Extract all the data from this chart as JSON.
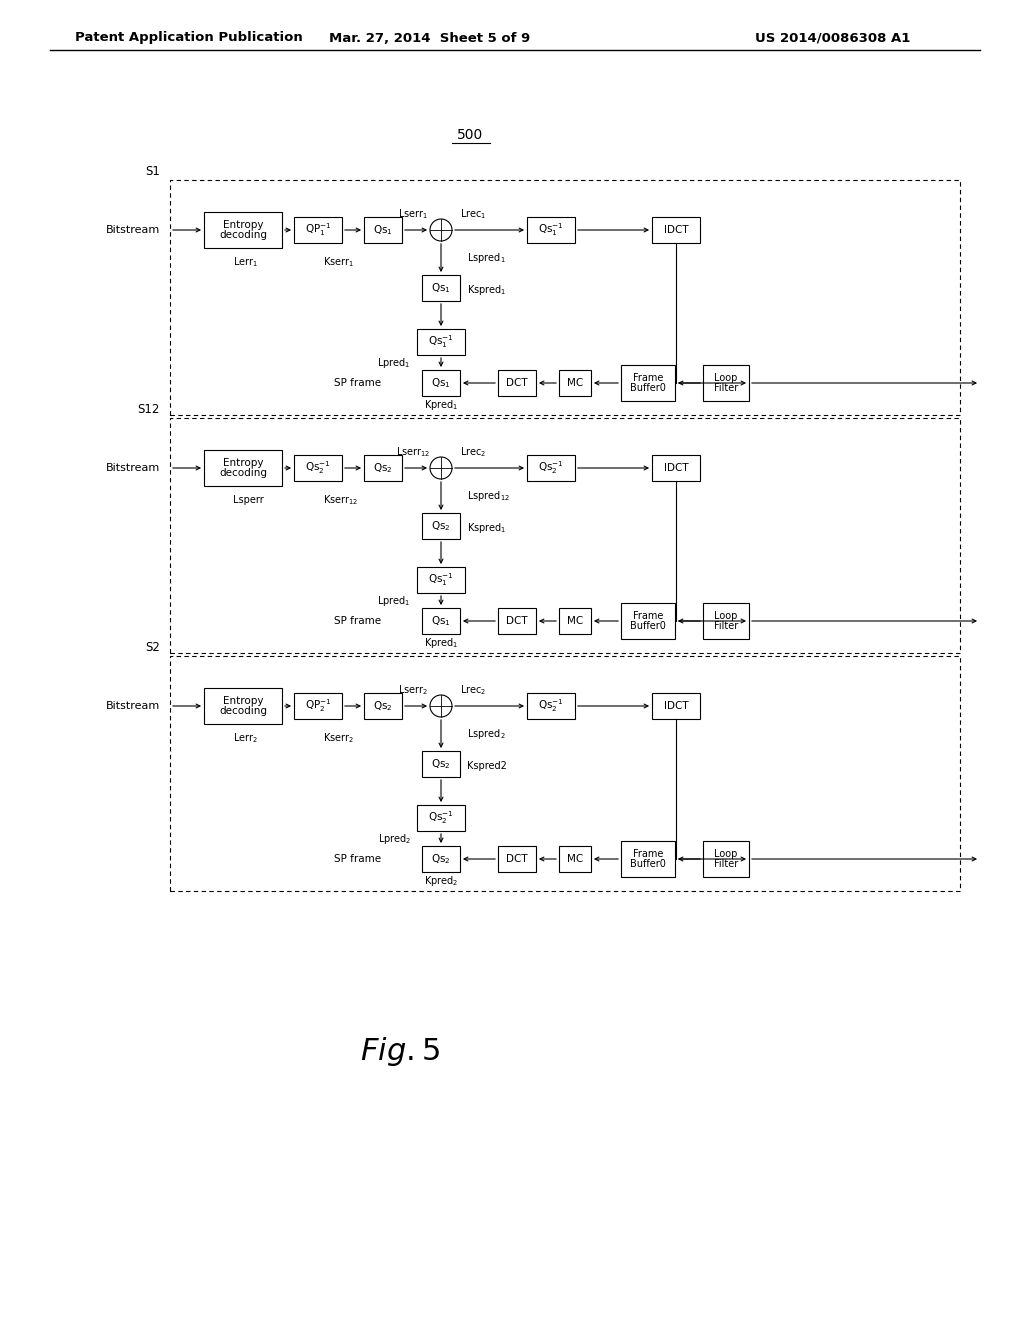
{
  "header_left": "Patent Application Publication",
  "header_mid": "Mar. 27, 2014  Sheet 5 of 9",
  "header_right": "US 2014/0086308 A1",
  "bg_color": "#ffffff",
  "sections": [
    {
      "idx": 0,
      "s_label": "S1",
      "qp_text": "QP$_1^{-1}$",
      "qs1_text": "Qs$_1$",
      "lserr_text": "Lserr$_1$",
      "lrec_text": "Lrec$_1$",
      "qs1inv_text": "Qs$_1^{-1}$",
      "lerr_text": "Lerr$_1$",
      "kserr_text": "Kserr$_1$",
      "qs_mid_text": "Qs$_1$",
      "lspred_text": "Lspred$_1$",
      "kspred_text": "Kspred$_1$",
      "qs_low_text": "Qs$_1^{-1}$",
      "lpred_text": "Lpred$_1$",
      "qs_bot_text": "Qs$_1$",
      "kpred_text": "Kpred$_1$"
    },
    {
      "idx": 1,
      "s_label": "S12",
      "qp_text": "Qs$_2^{-1}$",
      "qs1_text": "Qs$_2$",
      "lserr_text": "Lserr$_{12}$",
      "lrec_text": "Lrec$_2$",
      "qs1inv_text": "Qs$_2^{-1}$",
      "lerr_text": "Lsperr",
      "kserr_text": "Kserr$_{12}$",
      "qs_mid_text": "Qs$_2$",
      "lspred_text": "Lspred$_{12}$",
      "kspred_text": "Kspred$_1$",
      "qs_low_text": "Qs$_1^{-1}$",
      "lpred_text": "Lpred$_1$",
      "qs_bot_text": "Qs$_1$",
      "kpred_text": "Kpred$_1$"
    },
    {
      "idx": 2,
      "s_label": "S2",
      "qp_text": "QP$_2^{-1}$",
      "qs1_text": "Qs$_2$",
      "lserr_text": "Lserr$_2$",
      "lrec_text": "Lrec$_2$",
      "qs1inv_text": "Qs$_2^{-1}$",
      "lerr_text": "Lerr$_2$",
      "kserr_text": "Kserr$_2$",
      "qs_mid_text": "Qs$_2$",
      "lspred_text": "Lspred$_2$",
      "kspred_text": "Kspred2",
      "qs_low_text": "Qs$_2^{-1}$",
      "lpred_text": "Lpred$_2$",
      "qs_bot_text": "Qs$_2$",
      "kpred_text": "Kpred$_2$"
    }
  ]
}
